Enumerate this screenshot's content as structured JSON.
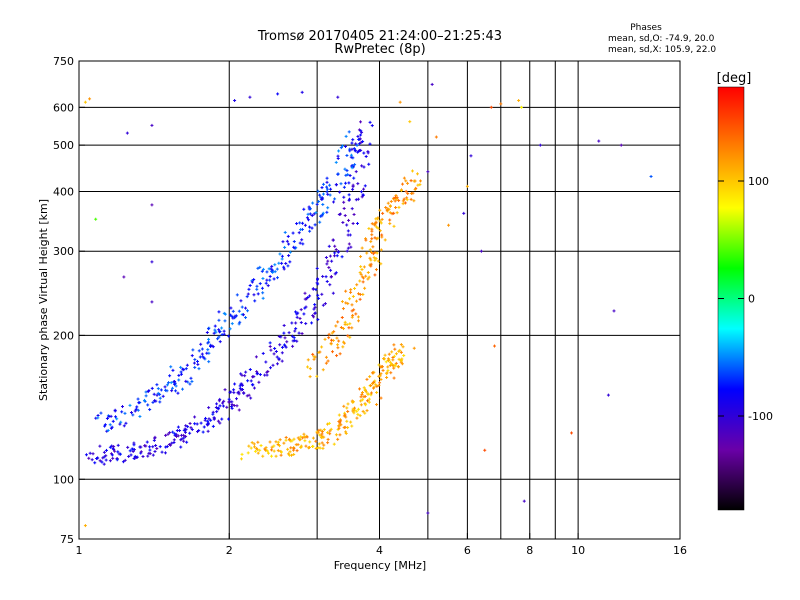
{
  "chart_data": {
    "type": "scatter",
    "title": "Tromsø 20170405 21:24:00–21:25:43",
    "subtitle": "RwPretec (8p)",
    "xlabel": "Frequency [MHz]",
    "ylabel": "Stationary phase Virtual Height [km]",
    "x_scale": "log",
    "y_scale": "log",
    "xlim": [
      1,
      16
    ],
    "ylim": [
      75,
      750
    ],
    "x_ticks": [
      1,
      2,
      4,
      6,
      8,
      10,
      16
    ],
    "x_tick_labels": [
      "1",
      "2",
      "4",
      "6",
      "8",
      "10",
      "16"
    ],
    "x_minor_ticks": [
      3,
      5,
      7,
      9
    ],
    "y_ticks": [
      75,
      100,
      200,
      300,
      400,
      500,
      600,
      750
    ],
    "y_tick_labels": [
      "75",
      "100",
      "200",
      "300",
      "400",
      "500",
      "600",
      "750"
    ],
    "grid": true,
    "colorbar": {
      "label": "[deg]",
      "range": [
        -180,
        180
      ],
      "tick_values": [
        100,
        0,
        -100
      ],
      "tick_labels": [
        "100",
        "0",
        "-100"
      ],
      "colors": [
        "#000000",
        "#6a00a8",
        "#0000ff",
        "#00ffff",
        "#00ff00",
        "#ffff00",
        "#ff8000",
        "#ff0000"
      ]
    },
    "stats": {
      "heading": "Phases",
      "line_o": "mean, sd,O: -74.9, 20.0",
      "line_x": "mean, sd,X: 105.9, 22.0"
    },
    "traces": [
      {
        "name": "O-mode lower trace",
        "phase": -95,
        "x": [
          1.05,
          1.2,
          1.4,
          1.6,
          1.8,
          2.0,
          2.2,
          2.5,
          2.8,
          3.1,
          3.4,
          3.6,
          3.75
        ],
        "y": [
          112,
          113,
          116,
          122,
          132,
          145,
          160,
          185,
          215,
          255,
          320,
          420,
          560
        ]
      },
      {
        "name": "O-mode upper trace",
        "phase": -70,
        "x": [
          1.1,
          1.3,
          1.5,
          1.7,
          1.9,
          2.1,
          2.4,
          2.7,
          3.0,
          3.3,
          3.55
        ],
        "y": [
          130,
          140,
          155,
          175,
          200,
          230,
          270,
          320,
          370,
          430,
          520
        ]
      },
      {
        "name": "X-mode trace",
        "phase": 110,
        "x": [
          2.2,
          2.5,
          2.8,
          3.1,
          3.4,
          3.7,
          3.95,
          4.2,
          4.5
        ],
        "y": [
          115,
          116,
          118,
          123,
          132,
          145,
          160,
          175,
          185
        ]
      },
      {
        "name": "X-mode upper trace",
        "phase": 120,
        "x": [
          3.0,
          3.3,
          3.6,
          3.85,
          4.0,
          4.3,
          4.8
        ],
        "y": [
          170,
          200,
          240,
          290,
          340,
          380,
          430
        ]
      }
    ],
    "scattered_points": [
      {
        "x": 1.03,
        "y": 615,
        "phase": 100
      },
      {
        "x": 1.05,
        "y": 625,
        "phase": 120
      },
      {
        "x": 1.08,
        "y": 350,
        "phase": 40
      },
      {
        "x": 1.25,
        "y": 530,
        "phase": -100
      },
      {
        "x": 1.4,
        "y": 550,
        "phase": -110
      },
      {
        "x": 1.4,
        "y": 375,
        "phase": -120
      },
      {
        "x": 1.4,
        "y": 285,
        "phase": -100
      },
      {
        "x": 1.4,
        "y": 235,
        "phase": -110
      },
      {
        "x": 1.23,
        "y": 265,
        "phase": -120
      },
      {
        "x": 1.03,
        "y": 80,
        "phase": 110
      },
      {
        "x": 2.05,
        "y": 620,
        "phase": -90
      },
      {
        "x": 2.2,
        "y": 630,
        "phase": -100
      },
      {
        "x": 2.5,
        "y": 640,
        "phase": -80
      },
      {
        "x": 2.8,
        "y": 645,
        "phase": -90
      },
      {
        "x": 3.3,
        "y": 630,
        "phase": -100
      },
      {
        "x": 4.4,
        "y": 615,
        "phase": 120
      },
      {
        "x": 4.6,
        "y": 560,
        "phase": 100
      },
      {
        "x": 5.1,
        "y": 670,
        "phase": -110
      },
      {
        "x": 5.0,
        "y": 440,
        "phase": -110
      },
      {
        "x": 5.2,
        "y": 520,
        "phase": 130
      },
      {
        "x": 5.5,
        "y": 340,
        "phase": 120
      },
      {
        "x": 5.9,
        "y": 360,
        "phase": -100
      },
      {
        "x": 6.4,
        "y": 300,
        "phase": -110
      },
      {
        "x": 6.7,
        "y": 600,
        "phase": 150
      },
      {
        "x": 7.0,
        "y": 610,
        "phase": 130
      },
      {
        "x": 7.6,
        "y": 620,
        "phase": 110
      },
      {
        "x": 7.7,
        "y": 600,
        "phase": 80
      },
      {
        "x": 8.4,
        "y": 500,
        "phase": -100
      },
      {
        "x": 11.0,
        "y": 510,
        "phase": -110
      },
      {
        "x": 12.2,
        "y": 500,
        "phase": -120
      },
      {
        "x": 11.8,
        "y": 225,
        "phase": -110
      },
      {
        "x": 11.5,
        "y": 150,
        "phase": -100
      },
      {
        "x": 14.0,
        "y": 430,
        "phase": -60
      },
      {
        "x": 5.0,
        "y": 85,
        "phase": -110
      },
      {
        "x": 7.8,
        "y": 90,
        "phase": -110
      },
      {
        "x": 9.7,
        "y": 125,
        "phase": 150
      },
      {
        "x": 6.8,
        "y": 190,
        "phase": 140
      },
      {
        "x": 6.5,
        "y": 115,
        "phase": 150
      },
      {
        "x": 6.0,
        "y": 410,
        "phase": 110
      },
      {
        "x": 6.1,
        "y": 475,
        "phase": -100
      }
    ]
  }
}
